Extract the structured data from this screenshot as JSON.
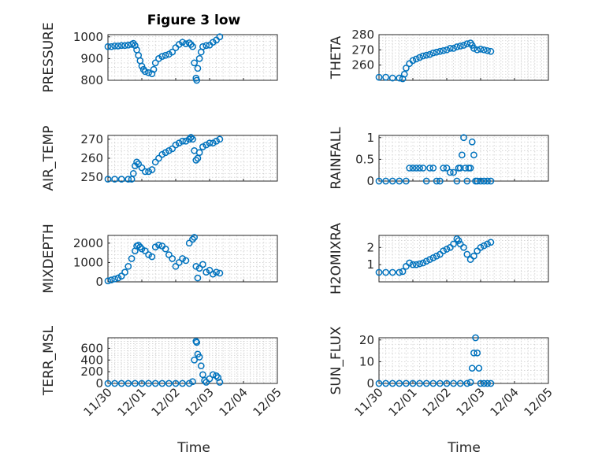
{
  "figure": {
    "title": "Figure 3 low",
    "xlabel": "Time",
    "xtick_labels": [
      "11/30",
      "12/01",
      "12/02",
      "12/03",
      "12/04",
      "12/05"
    ],
    "marker_color": "#0072BD",
    "background": "#ffffff"
  },
  "chart_data": [
    {
      "type": "scatter",
      "name": "PRESSURE",
      "ylabel": "PRESSURE",
      "ylim": [
        800,
        1010
      ],
      "yticks": [
        800,
        900,
        1000
      ],
      "xlim": [
        0,
        5
      ],
      "grid": true,
      "points": [
        [
          0,
          955
        ],
        [
          0.1,
          955
        ],
        [
          0.2,
          958
        ],
        [
          0.3,
          958
        ],
        [
          0.4,
          960
        ],
        [
          0.5,
          960
        ],
        [
          0.6,
          962
        ],
        [
          0.7,
          965
        ],
        [
          0.75,
          970
        ],
        [
          0.8,
          960
        ],
        [
          0.85,
          940
        ],
        [
          0.9,
          915
        ],
        [
          0.95,
          890
        ],
        [
          1.0,
          865
        ],
        [
          1.05,
          850
        ],
        [
          1.1,
          840
        ],
        [
          1.2,
          835
        ],
        [
          1.3,
          830
        ],
        [
          1.35,
          850
        ],
        [
          1.4,
          880
        ],
        [
          1.5,
          900
        ],
        [
          1.6,
          910
        ],
        [
          1.7,
          915
        ],
        [
          1.8,
          920
        ],
        [
          1.9,
          930
        ],
        [
          2.0,
          950
        ],
        [
          2.1,
          965
        ],
        [
          2.2,
          975
        ],
        [
          2.3,
          968
        ],
        [
          2.4,
          972
        ],
        [
          2.45,
          965
        ],
        [
          2.5,
          955
        ],
        [
          2.55,
          880
        ],
        [
          2.6,
          810
        ],
        [
          2.62,
          800
        ],
        [
          2.65,
          855
        ],
        [
          2.7,
          900
        ],
        [
          2.75,
          930
        ],
        [
          2.8,
          955
        ],
        [
          2.9,
          960
        ],
        [
          3.0,
          962
        ],
        [
          3.1,
          975
        ],
        [
          3.2,
          985
        ],
        [
          3.3,
          1000
        ]
      ]
    },
    {
      "type": "scatter",
      "name": "THETA",
      "ylabel": "THETA",
      "ylim": [
        250,
        280
      ],
      "yticks": [
        260,
        270,
        280
      ],
      "xlim": [
        0,
        5
      ],
      "grid": true,
      "points": [
        [
          0,
          252
        ],
        [
          0.2,
          252
        ],
        [
          0.4,
          251.5
        ],
        [
          0.6,
          251.5
        ],
        [
          0.7,
          251
        ],
        [
          0.75,
          254
        ],
        [
          0.8,
          258
        ],
        [
          0.9,
          261
        ],
        [
          1.0,
          263
        ],
        [
          1.1,
          264
        ],
        [
          1.2,
          265
        ],
        [
          1.3,
          266
        ],
        [
          1.4,
          266.5
        ],
        [
          1.5,
          267
        ],
        [
          1.6,
          268
        ],
        [
          1.7,
          268.5
        ],
        [
          1.8,
          269
        ],
        [
          1.9,
          269.5
        ],
        [
          2.0,
          270
        ],
        [
          2.1,
          271
        ],
        [
          2.2,
          271
        ],
        [
          2.3,
          272
        ],
        [
          2.4,
          272.5
        ],
        [
          2.5,
          273
        ],
        [
          2.6,
          274
        ],
        [
          2.7,
          274.5
        ],
        [
          2.75,
          273
        ],
        [
          2.8,
          271
        ],
        [
          2.9,
          270
        ],
        [
          3.0,
          270.5
        ],
        [
          3.1,
          270
        ],
        [
          3.2,
          269.5
        ],
        [
          3.3,
          269
        ]
      ]
    },
    {
      "type": "scatter",
      "name": "AIR_TEMP",
      "ylabel": "AIR_TEMP",
      "ylim": [
        248,
        272
      ],
      "yticks": [
        250,
        260,
        270
      ],
      "xlim": [
        0,
        5
      ],
      "grid": true,
      "points": [
        [
          0,
          249
        ],
        [
          0.2,
          249
        ],
        [
          0.4,
          249
        ],
        [
          0.6,
          249
        ],
        [
          0.7,
          249
        ],
        [
          0.75,
          252
        ],
        [
          0.8,
          256
        ],
        [
          0.85,
          258
        ],
        [
          0.9,
          257
        ],
        [
          1.0,
          255
        ],
        [
          1.1,
          253
        ],
        [
          1.2,
          253
        ],
        [
          1.3,
          254
        ],
        [
          1.4,
          258
        ],
        [
          1.5,
          260
        ],
        [
          1.6,
          262
        ],
        [
          1.7,
          263
        ],
        [
          1.8,
          264
        ],
        [
          1.9,
          265
        ],
        [
          2.0,
          267
        ],
        [
          2.1,
          268
        ],
        [
          2.2,
          269
        ],
        [
          2.3,
          269
        ],
        [
          2.4,
          270
        ],
        [
          2.45,
          271
        ],
        [
          2.5,
          270
        ],
        [
          2.55,
          264
        ],
        [
          2.6,
          259
        ],
        [
          2.65,
          260
        ],
        [
          2.7,
          263
        ],
        [
          2.8,
          266
        ],
        [
          2.9,
          267
        ],
        [
          3.0,
          268
        ],
        [
          3.1,
          268
        ],
        [
          3.2,
          269
        ],
        [
          3.3,
          270
        ]
      ]
    },
    {
      "type": "scatter",
      "name": "RAINFALL",
      "ylabel": "RAINFALL",
      "ylim": [
        0,
        1.05
      ],
      "yticks": [
        0,
        0.5,
        1
      ],
      "xlim": [
        0,
        5
      ],
      "grid": true,
      "points": [
        [
          0,
          0
        ],
        [
          0.2,
          0
        ],
        [
          0.4,
          0
        ],
        [
          0.6,
          0
        ],
        [
          0.8,
          0
        ],
        [
          0.9,
          0.3
        ],
        [
          1.0,
          0.3
        ],
        [
          1.1,
          0.3
        ],
        [
          1.2,
          0.3
        ],
        [
          1.3,
          0.3
        ],
        [
          1.4,
          0
        ],
        [
          1.5,
          0.3
        ],
        [
          1.6,
          0.3
        ],
        [
          1.7,
          0
        ],
        [
          1.8,
          0
        ],
        [
          1.9,
          0.3
        ],
        [
          2.0,
          0.3
        ],
        [
          2.1,
          0.2
        ],
        [
          2.2,
          0.2
        ],
        [
          2.3,
          0
        ],
        [
          2.35,
          0.3
        ],
        [
          2.4,
          0.3
        ],
        [
          2.45,
          0.6
        ],
        [
          2.5,
          1.0
        ],
        [
          2.55,
          0.3
        ],
        [
          2.6,
          0
        ],
        [
          2.65,
          0.3
        ],
        [
          2.7,
          0.3
        ],
        [
          2.75,
          0.9
        ],
        [
          2.8,
          0.6
        ],
        [
          2.85,
          0
        ],
        [
          2.9,
          0
        ],
        [
          3.0,
          0
        ],
        [
          3.1,
          0
        ],
        [
          3.2,
          0
        ],
        [
          3.3,
          0
        ]
      ]
    },
    {
      "type": "scatter",
      "name": "MIXDEPTH",
      "ylabel": "MIXDEPTH",
      "ylim": [
        0,
        2400
      ],
      "yticks": [
        0,
        1000,
        2000
      ],
      "xlim": [
        0,
        5
      ],
      "grid": true,
      "points": [
        [
          0,
          50
        ],
        [
          0.1,
          100
        ],
        [
          0.2,
          150
        ],
        [
          0.3,
          200
        ],
        [
          0.4,
          300
        ],
        [
          0.5,
          500
        ],
        [
          0.6,
          800
        ],
        [
          0.7,
          1200
        ],
        [
          0.8,
          1600
        ],
        [
          0.85,
          1850
        ],
        [
          0.9,
          1900
        ],
        [
          0.95,
          1800
        ],
        [
          1.0,
          1700
        ],
        [
          1.1,
          1600
        ],
        [
          1.2,
          1400
        ],
        [
          1.3,
          1300
        ],
        [
          1.4,
          1800
        ],
        [
          1.5,
          1900
        ],
        [
          1.6,
          1850
        ],
        [
          1.7,
          1700
        ],
        [
          1.8,
          1400
        ],
        [
          1.9,
          1200
        ],
        [
          2.0,
          800
        ],
        [
          2.1,
          1000
        ],
        [
          2.2,
          1200
        ],
        [
          2.3,
          1100
        ],
        [
          2.4,
          2000
        ],
        [
          2.5,
          2200
        ],
        [
          2.55,
          2300
        ],
        [
          2.6,
          800
        ],
        [
          2.65,
          200
        ],
        [
          2.7,
          700
        ],
        [
          2.8,
          900
        ],
        [
          2.9,
          500
        ],
        [
          3.0,
          600
        ],
        [
          3.1,
          400
        ],
        [
          3.2,
          500
        ],
        [
          3.3,
          450
        ]
      ]
    },
    {
      "type": "scatter",
      "name": "H2OMIXRA",
      "ylabel": "H2OMIXRA",
      "ylim": [
        0,
        2.7
      ],
      "yticks": [
        1,
        2
      ],
      "xlim": [
        0,
        5
      ],
      "grid": true,
      "points": [
        [
          0,
          0.55
        ],
        [
          0.2,
          0.55
        ],
        [
          0.4,
          0.55
        ],
        [
          0.6,
          0.55
        ],
        [
          0.7,
          0.6
        ],
        [
          0.8,
          0.9
        ],
        [
          0.9,
          1.1
        ],
        [
          1.0,
          1.0
        ],
        [
          1.1,
          1.0
        ],
        [
          1.2,
          1.05
        ],
        [
          1.3,
          1.1
        ],
        [
          1.4,
          1.2
        ],
        [
          1.5,
          1.3
        ],
        [
          1.6,
          1.4
        ],
        [
          1.7,
          1.5
        ],
        [
          1.8,
          1.6
        ],
        [
          1.9,
          1.8
        ],
        [
          2.0,
          1.9
        ],
        [
          2.1,
          2.0
        ],
        [
          2.2,
          2.2
        ],
        [
          2.3,
          2.5
        ],
        [
          2.35,
          2.4
        ],
        [
          2.4,
          2.2
        ],
        [
          2.5,
          2.0
        ],
        [
          2.6,
          1.6
        ],
        [
          2.7,
          1.3
        ],
        [
          2.8,
          1.5
        ],
        [
          2.9,
          1.8
        ],
        [
          3.0,
          2.0
        ],
        [
          3.1,
          2.1
        ],
        [
          3.2,
          2.2
        ],
        [
          3.3,
          2.3
        ]
      ]
    },
    {
      "type": "scatter",
      "name": "TERR_MSL",
      "ylabel": "TERR_MSL",
      "ylim": [
        0,
        780
      ],
      "yticks": [
        0,
        200,
        400,
        600
      ],
      "xlim": [
        0,
        5
      ],
      "grid": true,
      "points": [
        [
          0,
          0
        ],
        [
          0.2,
          0
        ],
        [
          0.4,
          0
        ],
        [
          0.6,
          0
        ],
        [
          0.8,
          0
        ],
        [
          1.0,
          0
        ],
        [
          1.2,
          0
        ],
        [
          1.4,
          0
        ],
        [
          1.6,
          0
        ],
        [
          1.8,
          0
        ],
        [
          2.0,
          0
        ],
        [
          2.2,
          0
        ],
        [
          2.4,
          0
        ],
        [
          2.5,
          30
        ],
        [
          2.55,
          400
        ],
        [
          2.6,
          720
        ],
        [
          2.62,
          700
        ],
        [
          2.65,
          500
        ],
        [
          2.7,
          450
        ],
        [
          2.75,
          300
        ],
        [
          2.8,
          150
        ],
        [
          2.85,
          50
        ],
        [
          2.9,
          20
        ],
        [
          3.0,
          80
        ],
        [
          3.1,
          150
        ],
        [
          3.2,
          130
        ],
        [
          3.25,
          100
        ],
        [
          3.3,
          20
        ]
      ]
    },
    {
      "type": "scatter",
      "name": "SUN_FLUX",
      "ylabel": "SUN_FLUX",
      "ylim": [
        0,
        21
      ],
      "yticks": [
        0,
        10,
        20
      ],
      "xlim": [
        0,
        5
      ],
      "grid": true,
      "points": [
        [
          0,
          0
        ],
        [
          0.2,
          0
        ],
        [
          0.4,
          0
        ],
        [
          0.6,
          0
        ],
        [
          0.8,
          0
        ],
        [
          1.0,
          0
        ],
        [
          1.2,
          0
        ],
        [
          1.4,
          0
        ],
        [
          1.6,
          0
        ],
        [
          1.8,
          0
        ],
        [
          2.0,
          0
        ],
        [
          2.2,
          0
        ],
        [
          2.4,
          0
        ],
        [
          2.6,
          0
        ],
        [
          2.7,
          0.5
        ],
        [
          2.75,
          7
        ],
        [
          2.8,
          14
        ],
        [
          2.85,
          21
        ],
        [
          2.9,
          14
        ],
        [
          2.95,
          7
        ],
        [
          3.0,
          0
        ],
        [
          3.1,
          0
        ],
        [
          3.2,
          0
        ],
        [
          3.3,
          0
        ]
      ]
    }
  ]
}
